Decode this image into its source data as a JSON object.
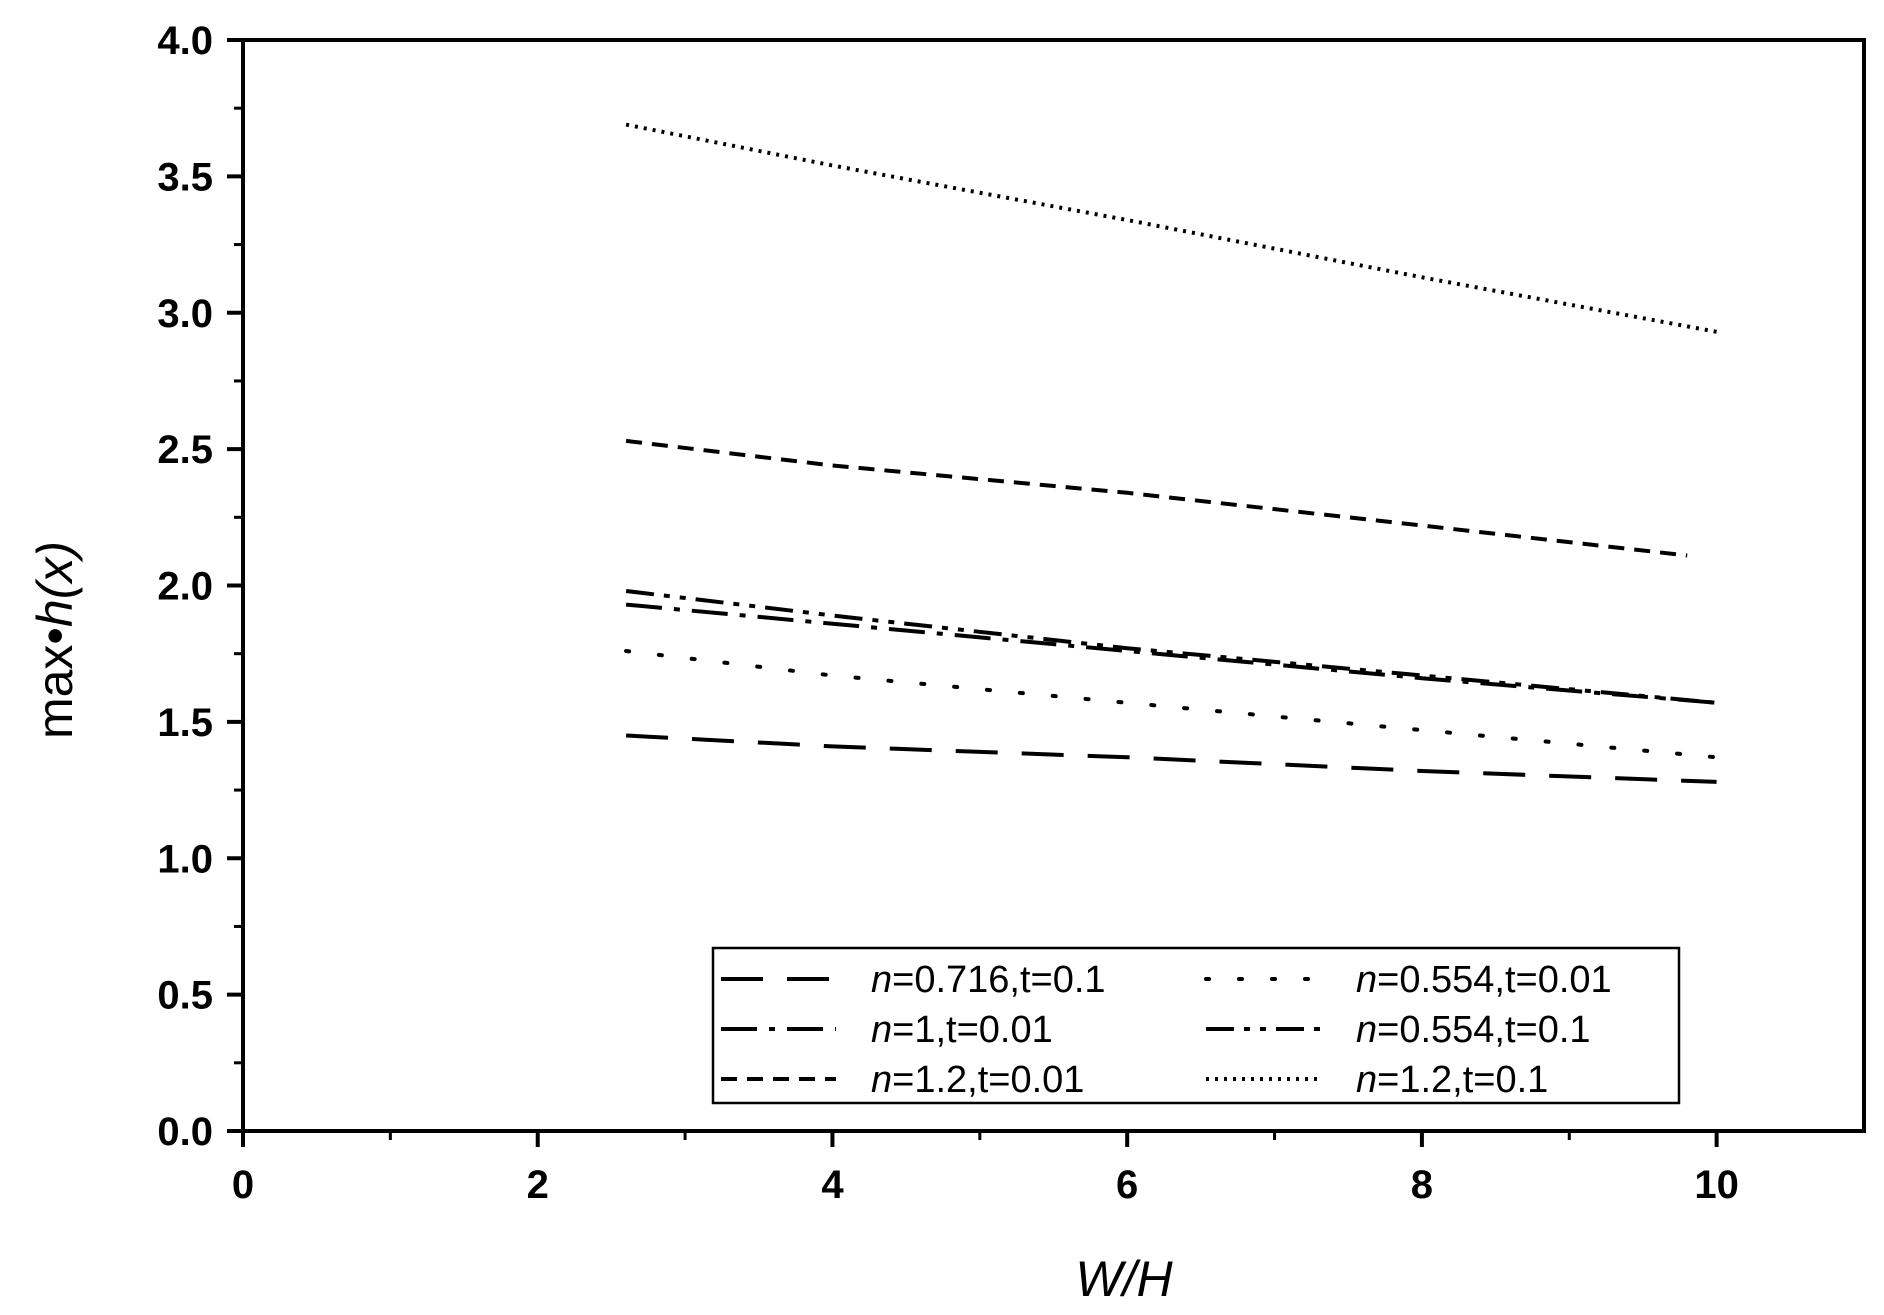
{
  "chart_data": {
    "type": "line",
    "title": "",
    "xlabel": "W/H",
    "ylabel_plain": "max•",
    "ylabel_italic": "h(x)",
    "xlim": [
      0,
      11
    ],
    "ylim": [
      0,
      4
    ],
    "xticks": [
      0,
      2,
      4,
      6,
      8,
      10
    ],
    "xtick_labels": [
      "0",
      "2",
      "4",
      "6",
      "8",
      "10"
    ],
    "yticks": [
      0,
      0.5,
      1,
      1.5,
      2,
      2.5,
      3,
      3.5,
      4
    ],
    "ytick_labels": [
      "0.0",
      "0.5",
      "1.0",
      "1.5",
      "2.0",
      "2.5",
      "3.0",
      "3.5",
      "4.0"
    ],
    "grid": false,
    "legend_position": "bottom-right",
    "legend_columns": 2,
    "series": [
      {
        "name_italic": "n",
        "name_rest": "=0.716,t=0.1",
        "style": "long-dash",
        "x": [
          2.6,
          4,
          6,
          8,
          10
        ],
        "y": [
          1.45,
          1.41,
          1.37,
          1.32,
          1.28
        ]
      },
      {
        "name_italic": "n",
        "name_rest": "=0.554,t=0.01",
        "style": "sparse-dot",
        "x": [
          2.6,
          4,
          6,
          8,
          10
        ],
        "y": [
          1.76,
          1.67,
          1.57,
          1.47,
          1.37
        ]
      },
      {
        "name_italic": "n",
        "name_rest": "=1,t=0.01",
        "style": "dash-dot",
        "x": [
          2.6,
          4,
          6,
          8,
          10
        ],
        "y": [
          1.93,
          1.86,
          1.76,
          1.66,
          1.57
        ]
      },
      {
        "name_italic": "n",
        "name_rest": "=0.554,t=0.1",
        "style": "dash-dot-dot",
        "x": [
          2.6,
          4,
          6,
          8,
          10
        ],
        "y": [
          1.98,
          1.89,
          1.77,
          1.67,
          1.57
        ]
      },
      {
        "name_italic": "n",
        "name_rest": "=1.2,t=0.01",
        "style": "short-dash",
        "x": [
          2.6,
          4,
          6,
          8,
          9.8
        ],
        "y": [
          2.53,
          2.44,
          2.34,
          2.22,
          2.11
        ]
      },
      {
        "name_italic": "n",
        "name_rest": "=1.2,t=0.1",
        "style": "dense-dot",
        "x": [
          2.6,
          4,
          6,
          8,
          10
        ],
        "y": [
          3.69,
          3.54,
          3.34,
          3.13,
          2.93
        ]
      }
    ]
  }
}
